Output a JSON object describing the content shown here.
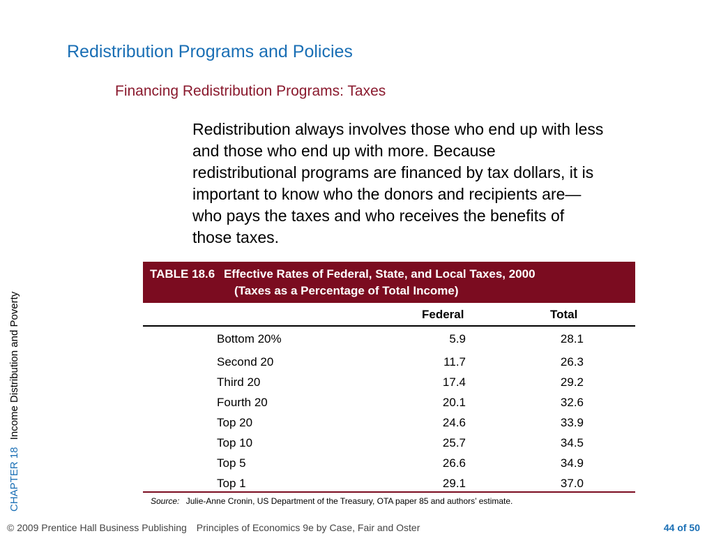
{
  "slide": {
    "title": "Redistribution Programs and Policies",
    "subtitle": "Financing Redistribution Programs: Taxes",
    "body": "Redistribution always involves those who end up with less and those who end up with more. Because redistributional programs are financed by tax dollars, it is important to know who the donors and recipients are—who pays the taxes and who receives the benefits of those taxes."
  },
  "side_label": {
    "chapter": "CHAPTER 18",
    "chapter_title": "Income Distribution and Poverty"
  },
  "table": {
    "number": "TABLE 18.6",
    "caption_line1": "Effective Rates of Federal, State, and Local Taxes, 2000",
    "caption_line2": "(Taxes as a Percentage of Total Income)",
    "columns": [
      "Federal",
      "Total"
    ],
    "rows": [
      {
        "label": "Bottom 20%",
        "federal": "5.9",
        "total": "28.1"
      },
      {
        "label": "Second 20",
        "federal": "11.7",
        "total": "26.3"
      },
      {
        "label": "Third 20",
        "federal": "17.4",
        "total": "29.2"
      },
      {
        "label": "Fourth 20",
        "federal": "20.1",
        "total": "32.6"
      },
      {
        "label": "Top 20",
        "federal": "24.6",
        "total": "33.9"
      },
      {
        "label": "Top 10",
        "federal": "25.7",
        "total": "34.5"
      },
      {
        "label": "Top 5",
        "federal": "26.6",
        "total": "34.9"
      },
      {
        "label": "Top 1",
        "federal": "29.1",
        "total": "37.0"
      }
    ],
    "source_label": "Source:",
    "source_text": "Julie-Anne Cronin, US Department of the Treasury, OTA paper 85 and authors’ estimate."
  },
  "footer": {
    "copyright": "© 2009 Prentice Hall Business Publishing",
    "book": "Principles of Economics 9e by Case, Fair and Oster",
    "page_current": "44",
    "page_of": "of",
    "page_total": "50"
  },
  "colors": {
    "title_blue": "#1a6fb5",
    "subtitle_maroon": "#8a1a2e",
    "table_header_maroon": "#7b0c20"
  }
}
